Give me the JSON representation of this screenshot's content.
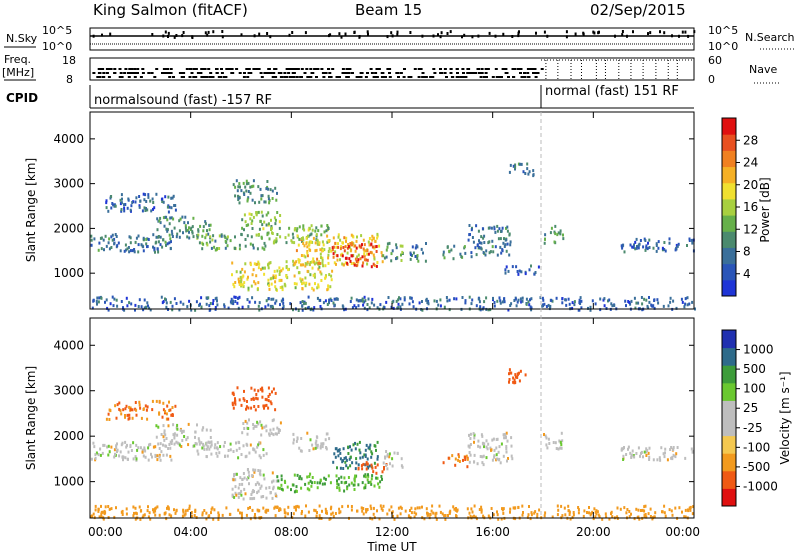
{
  "header": {
    "station": "King Salmon (fitACF)",
    "beam": "Beam 15",
    "date": "02/Sep/2015"
  },
  "left_labels": {
    "nsky": "N.Sky",
    "nsky_hi": "10^5",
    "nsky_lo": "10^0",
    "freq_line1": "Freq.",
    "freq_line2": "[MHz]",
    "freq_hi": "18",
    "freq_lo": "8",
    "cpid": "CPID"
  },
  "right_labels": {
    "nsearch": "N.Search",
    "nsearch_hi": "10^5",
    "nsearch_lo": "10^0",
    "nave": "Nave",
    "nave_hi": "60",
    "nave_lo": "0"
  },
  "cpid_segments": [
    {
      "label": "normalsound (fast) -157 RF",
      "start_hour": 0
    },
    {
      "label": "normal (fast) 151 RF",
      "start_hour": 18
    }
  ],
  "colors": {
    "power": [
      "#1f35d6",
      "#2a55b8",
      "#3a6f9a",
      "#4b8a6e",
      "#66b04a",
      "#a8d040",
      "#f0e030",
      "#f5b025",
      "#f08020",
      "#e85020",
      "#e01010"
    ],
    "velocity": [
      "#e01010",
      "#f05a14",
      "#f29a1e",
      "#f4c850",
      "#bebebe",
      "#bebebe",
      "#6ac830",
      "#3d9c3a",
      "#2e6b8a",
      "#2030b0"
    ]
  },
  "chart_data": [
    {
      "type": "heatmap",
      "name": "power",
      "ylabel": "Slant Range [km]",
      "ylim": [
        200,
        4600
      ],
      "yticks": [
        "1000",
        "2000",
        "3000",
        "4000"
      ],
      "xlim_hours": [
        0,
        24
      ],
      "colorbar": {
        "label": "Power [dB]",
        "range": [
          0,
          32
        ],
        "ticks": [
          "4",
          "8",
          "12",
          "16",
          "20",
          "24",
          "28"
        ]
      },
      "regions": [
        {
          "t0": 0.0,
          "t1": 3.2,
          "r0": 1500,
          "r1": 1900,
          "value": 8
        },
        {
          "t0": 0.6,
          "t1": 3.4,
          "r0": 2400,
          "r1": 2800,
          "value": 6
        },
        {
          "t0": 2.6,
          "t1": 4.8,
          "r0": 1800,
          "r1": 2300,
          "value": 10
        },
        {
          "t0": 4.2,
          "t1": 7.0,
          "r0": 1550,
          "r1": 1900,
          "value": 12
        },
        {
          "t0": 5.6,
          "t1": 7.4,
          "r0": 2600,
          "r1": 3100,
          "value": 10
        },
        {
          "t0": 6.0,
          "t1": 7.6,
          "r0": 2000,
          "r1": 2400,
          "value": 14
        },
        {
          "t0": 5.6,
          "t1": 9.6,
          "r0": 650,
          "r1": 1300,
          "value": 18
        },
        {
          "t0": 7.0,
          "t1": 9.5,
          "r0": 1700,
          "r1": 2100,
          "value": 14
        },
        {
          "t0": 8.0,
          "t1": 11.6,
          "r0": 1200,
          "r1": 1900,
          "value": 20
        },
        {
          "t0": 9.6,
          "t1": 11.4,
          "r0": 1150,
          "r1": 1700,
          "value": 28
        },
        {
          "t0": 11.6,
          "t1": 12.4,
          "r0": 1300,
          "r1": 1700,
          "value": 12
        },
        {
          "t0": 12.6,
          "t1": 13.4,
          "r0": 1300,
          "r1": 1700,
          "value": 8
        },
        {
          "t0": 14.0,
          "t1": 15.0,
          "r0": 1350,
          "r1": 1650,
          "value": 10
        },
        {
          "t0": 15.0,
          "t1": 16.8,
          "r0": 1400,
          "r1": 2100,
          "value": 8
        },
        {
          "t0": 16.4,
          "t1": 17.8,
          "r0": 1000,
          "r1": 1200,
          "value": 6
        },
        {
          "t0": 16.6,
          "t1": 17.6,
          "r0": 3200,
          "r1": 3500,
          "value": 8
        },
        {
          "t0": 18.0,
          "t1": 18.8,
          "r0": 1700,
          "r1": 2100,
          "value": 10
        },
        {
          "t0": 21.0,
          "t1": 24.0,
          "r0": 1500,
          "r1": 1800,
          "value": 6
        },
        {
          "t0": 0.0,
          "t1": 24.0,
          "r0": 200,
          "r1": 500,
          "value": 6
        }
      ]
    },
    {
      "type": "heatmap",
      "name": "velocity",
      "ylabel": "Slant Range [km]",
      "ylim": [
        200,
        4600
      ],
      "yticks": [
        "1000",
        "2000",
        "3000",
        "4000"
      ],
      "xlim_hours": [
        0,
        24
      ],
      "xlabel": "Time UT",
      "xticks": [
        "00:00",
        "04:00",
        "08:00",
        "12:00",
        "16:00",
        "20:00",
        "00:00"
      ],
      "colorbar": {
        "label": "Velocity [m s⁻¹]",
        "ticks": [
          "1000",
          "500",
          "100",
          "25",
          "-25",
          "-100",
          "-500",
          "-1000"
        ]
      },
      "regions": [
        {
          "t0": 0.0,
          "t1": 3.2,
          "r0": 1500,
          "r1": 1900,
          "value": 0
        },
        {
          "t0": 0.6,
          "t1": 3.4,
          "r0": 2400,
          "r1": 2800,
          "value": -100
        },
        {
          "t0": 2.6,
          "t1": 4.8,
          "r0": 1800,
          "r1": 2300,
          "value": 0
        },
        {
          "t0": 4.2,
          "t1": 7.0,
          "r0": 1550,
          "r1": 1900,
          "value": 0
        },
        {
          "t0": 5.6,
          "t1": 7.4,
          "r0": 2600,
          "r1": 3100,
          "value": -300
        },
        {
          "t0": 6.0,
          "t1": 7.6,
          "r0": 2000,
          "r1": 2400,
          "value": 0
        },
        {
          "t0": 5.6,
          "t1": 7.4,
          "r0": 650,
          "r1": 1300,
          "value": 0
        },
        {
          "t0": 7.4,
          "t1": 11.6,
          "r0": 800,
          "r1": 1200,
          "value": 100
        },
        {
          "t0": 8.0,
          "t1": 9.5,
          "r0": 1700,
          "r1": 2100,
          "value": 0
        },
        {
          "t0": 9.6,
          "t1": 11.4,
          "r0": 1300,
          "r1": 1900,
          "value": 600
        },
        {
          "t0": 10.6,
          "t1": 11.8,
          "r0": 1200,
          "r1": 1500,
          "value": -200
        },
        {
          "t0": 11.6,
          "t1": 12.4,
          "r0": 1300,
          "r1": 1700,
          "value": 0
        },
        {
          "t0": 14.0,
          "t1": 15.0,
          "r0": 1350,
          "r1": 1650,
          "value": -100
        },
        {
          "t0": 15.0,
          "t1": 16.8,
          "r0": 1400,
          "r1": 2100,
          "value": 0
        },
        {
          "t0": 16.6,
          "t1": 17.6,
          "r0": 3200,
          "r1": 3500,
          "value": -200
        },
        {
          "t0": 18.0,
          "t1": 18.8,
          "r0": 1700,
          "r1": 2100,
          "value": 0
        },
        {
          "t0": 21.0,
          "t1": 24.0,
          "r0": 1500,
          "r1": 1800,
          "value": 0
        },
        {
          "t0": 0.0,
          "t1": 24.0,
          "r0": 200,
          "r1": 500,
          "value": -60
        }
      ]
    }
  ]
}
